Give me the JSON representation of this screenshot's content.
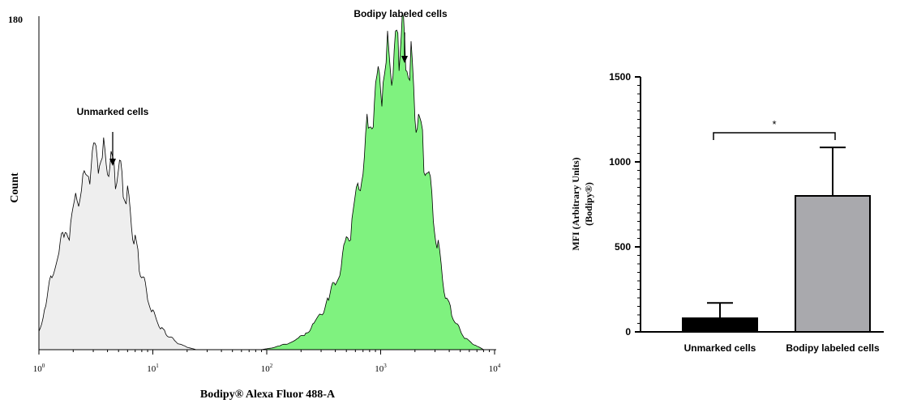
{
  "chart_data": [
    {
      "type": "area",
      "xlabel": "Bodipy® Alexa Fluor 488-A",
      "ylabel": "Count",
      "xscale": "log",
      "xlim": [
        1,
        10000
      ],
      "ylim": [
        0,
        180
      ],
      "y_tick_labels": [
        "180"
      ],
      "x_tick_labels": [
        {
          "base": "10",
          "exp": "0"
        },
        {
          "base": "10",
          "exp": "1"
        },
        {
          "base": "10",
          "exp": "2"
        },
        {
          "base": "10",
          "exp": "3"
        },
        {
          "base": "10",
          "exp": "4"
        }
      ],
      "annotations": [
        "Unmarked cells",
        "Bodipy labeled cells"
      ],
      "series": [
        {
          "fill": "#eeeeee",
          "x": [
            1.0,
            1.15,
            1.3,
            1.5,
            1.7,
            1.9,
            2.1,
            2.3,
            2.5,
            2.8,
            3.1,
            3.4,
            3.7,
            4.0,
            4.3,
            4.7,
            5.1,
            5.5,
            6.0,
            6.5,
            7.0,
            7.6,
            8.2,
            9.0,
            10.0,
            11.0,
            12.0,
            13.0,
            14.0,
            15.5,
            17.0,
            19.0,
            21.0,
            24.0
          ],
          "y": [
            10,
            25,
            40,
            55,
            60,
            70,
            80,
            90,
            95,
            100,
            103,
            105,
            104,
            106,
            103,
            100,
            95,
            88,
            80,
            72,
            60,
            48,
            38,
            28,
            20,
            15,
            12,
            9,
            7,
            5,
            3,
            2,
            1,
            0
          ]
        },
        {
          "fill": "#7ff27f",
          "x": [
            90,
            110,
            130,
            160,
            190,
            220,
            260,
            300,
            350,
            400,
            450,
            500,
            560,
            630,
            700,
            780,
            860,
            950,
            1050,
            1150,
            1250,
            1350,
            1450,
            1550,
            1700,
            1850,
            2000,
            2200,
            2400,
            2650,
            2900,
            3200,
            3500,
            3800,
            4200,
            4600,
            5100,
            5600,
            6200,
            7000,
            8000
          ],
          "y": [
            0,
            1,
            2,
            4,
            6,
            9,
            14,
            20,
            28,
            36,
            45,
            58,
            72,
            88,
            105,
            118,
            130,
            140,
            152,
            160,
            163,
            166,
            170,
            165,
            160,
            152,
            140,
            122,
            108,
            90,
            72,
            55,
            40,
            28,
            20,
            14,
            9,
            6,
            4,
            2,
            0
          ]
        }
      ]
    },
    {
      "type": "bar",
      "categories": [
        "Unmarked cells",
        "Bodipy labeled cells"
      ],
      "values": [
        80,
        800
      ],
      "error_upper": [
        170,
        1085
      ],
      "colors": [
        "#000000",
        "#a9a9ad"
      ],
      "ylabel": "MFI (Arbitrary Units)",
      "ylabel2": "(Bodipy®)",
      "ylim": [
        0,
        1500
      ],
      "y_ticks": [
        0,
        500,
        1000,
        1500
      ],
      "y_tick_labels": [
        "0",
        "500",
        "1000",
        "1500"
      ],
      "significance": "*"
    }
  ]
}
